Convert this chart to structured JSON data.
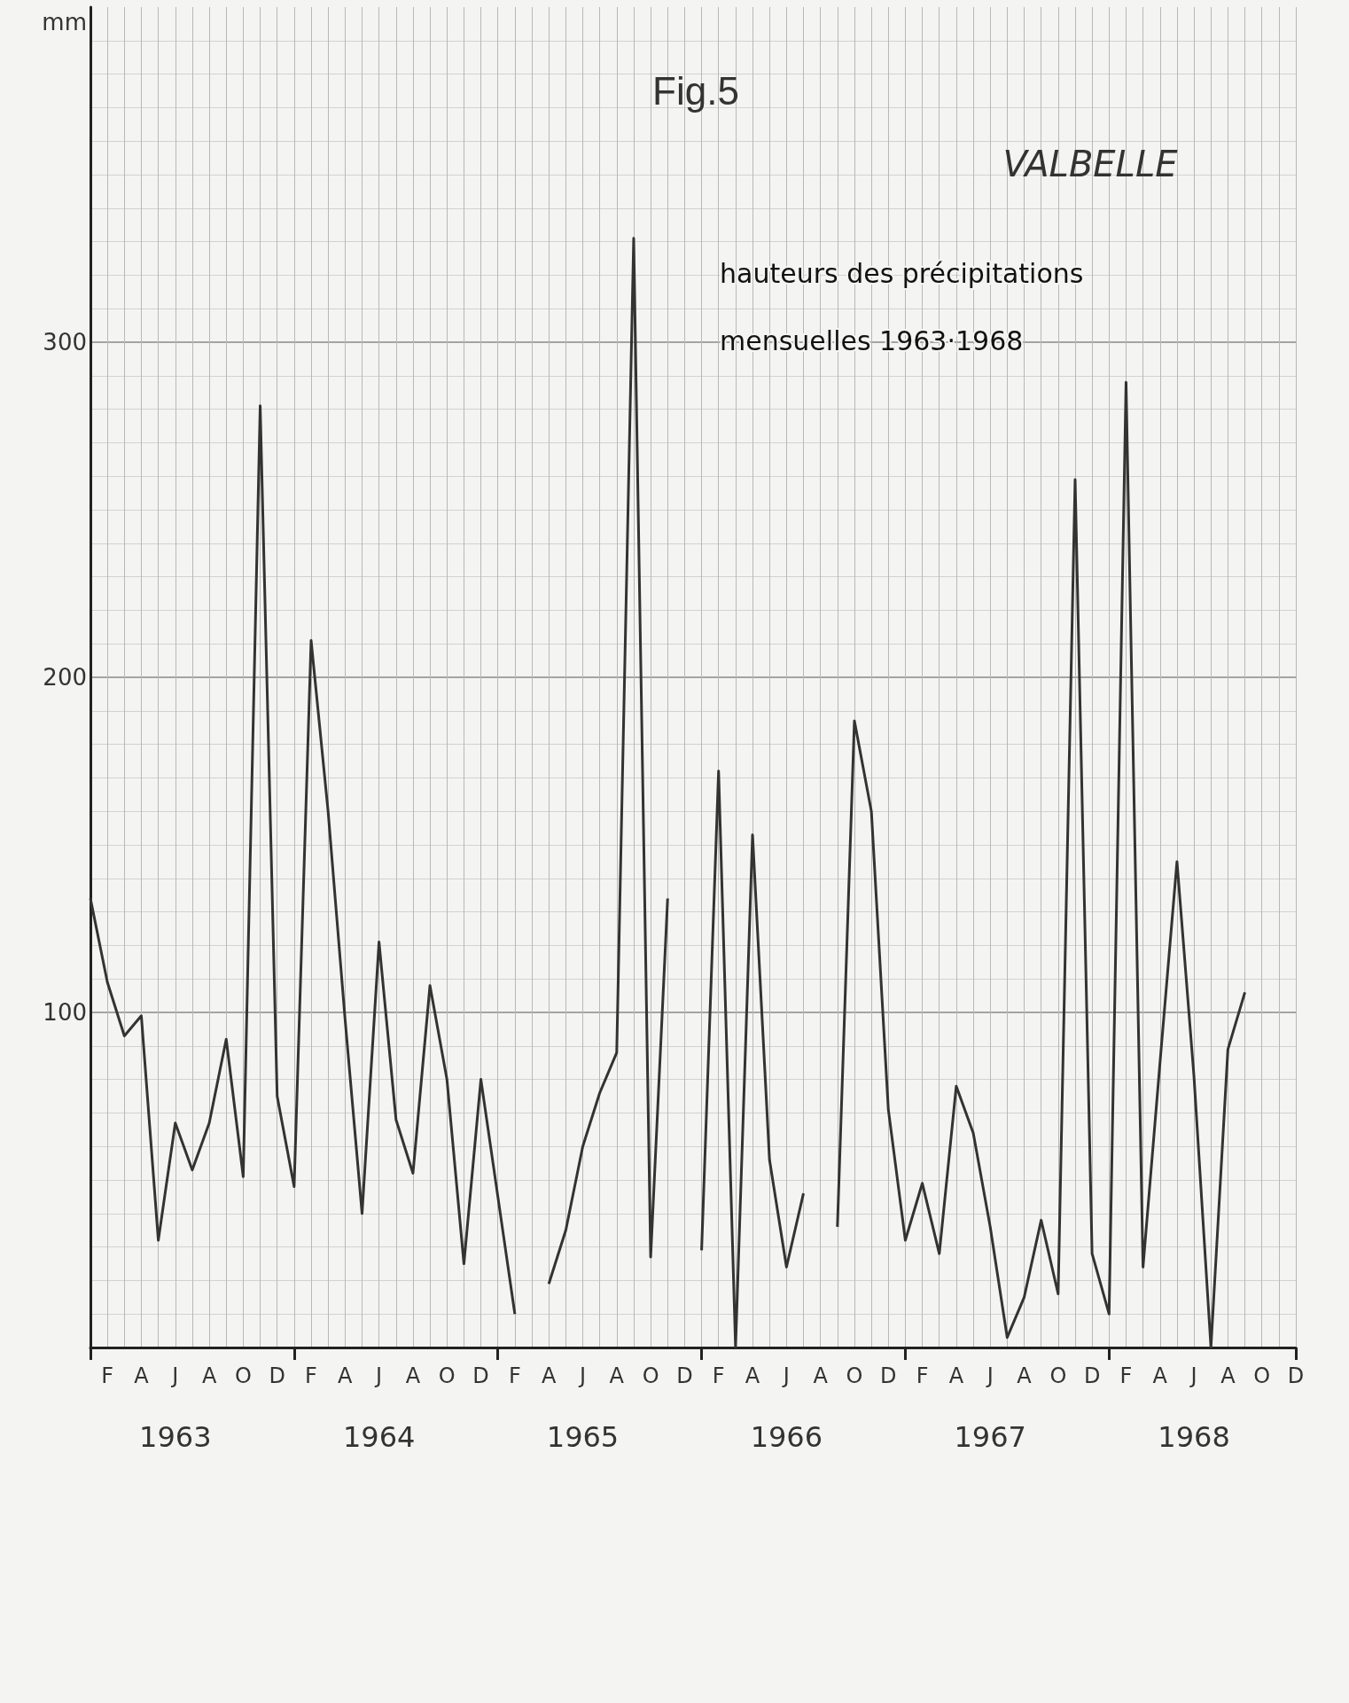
{
  "chart_data": {
    "type": "line",
    "title": "Fig.5",
    "subtitle": "VALBELLE",
    "ylabel": "mm",
    "annotations": [
      "hauteurs des précipitations mensuelles 1963·1968",
      "1963",
      "1964",
      "1965",
      "1966",
      "1967",
      "1968"
    ],
    "categories": [
      null,
      "F",
      null,
      "A",
      null,
      "J",
      null,
      "A",
      null,
      "O",
      null,
      "D",
      null,
      "F",
      null,
      "A",
      null,
      "J",
      null,
      "A",
      null,
      "O",
      null,
      "D",
      null,
      "F",
      null,
      "A",
      null,
      "J",
      null,
      "A",
      null,
      "O",
      null,
      "D",
      null,
      "F",
      null,
      "A",
      null,
      "J",
      null,
      "A",
      null,
      "O",
      null,
      "D",
      null,
      "F",
      null,
      "A",
      null,
      "J",
      null,
      "A",
      null,
      "O",
      null,
      "D",
      null,
      "F",
      null,
      "A",
      null,
      "J",
      null,
      "A",
      null,
      "O",
      null,
      "D"
    ],
    "series": [
      {
        "color": "#333333",
        "values": [
          134,
          109,
          93,
          99,
          32,
          67,
          53,
          67,
          92,
          51,
          281,
          75,
          48,
          211,
          160,
          98,
          40,
          121,
          68,
          52,
          108,
          80,
          25,
          80,
          45,
          10,
          null,
          19,
          35,
          60,
          76,
          88,
          331,
          27,
          134,
          null,
          29,
          172,
          0,
          153,
          56,
          24,
          46,
          null,
          36,
          187,
          160,
          71,
          32,
          49,
          28,
          78,
          64,
          36,
          3,
          15,
          38,
          16,
          259,
          28,
          10,
          288,
          24,
          85,
          145,
          81,
          0,
          89,
          106,
          null,
          null,
          null
        ]
      }
    ],
    "ylim": [
      0,
      400
    ],
    "yticks": [
      100,
      200,
      300
    ],
    "grid": true,
    "marker": "none",
    "line_style": "solid"
  }
}
